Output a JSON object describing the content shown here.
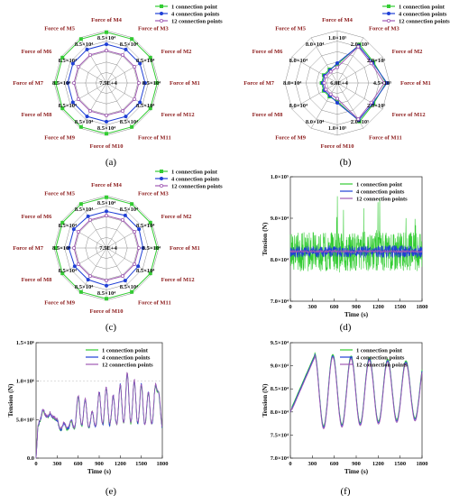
{
  "captions": [
    "(a)",
    "(b)",
    "(c)",
    "(d)",
    "(e)",
    "(f)"
  ],
  "colors": {
    "one_point": "#33cc33",
    "four_points": "#1f3fd6",
    "twelve_points": "#a05ab4",
    "force_label": "#8b1a1a",
    "grid": "#8a8a8a"
  },
  "chart_data": [
    {
      "panel": "(a)",
      "type": "radar",
      "legend": [
        "1 connection point",
        "4 connection points",
        "12 connection points"
      ],
      "categories": [
        "Force of M1",
        "Force of M2",
        "Force of M3",
        "Force of M4",
        "Force of M5",
        "Force of M6",
        "Force of M7",
        "Force of M8",
        "Force of M9",
        "Force of M10",
        "Force of M11",
        "Force of M12"
      ],
      "ring_labels": [
        "8.5×10⁴",
        "8.5×10⁴",
        "8.5×10⁴",
        "8.5×10⁴",
        "8.5×10⁴",
        "8.5×10⁴",
        "8.5×10⁴",
        "8.5×10⁴",
        "8.5×10⁴",
        "8.5×10⁴",
        "8.5×10⁴",
        "8.5×10⁴"
      ],
      "center_label": "7.5E+4",
      "series": [
        {
          "name": "1 connection point",
          "values": [
            0.97,
            0.97,
            0.97,
            0.97,
            0.97,
            0.97,
            0.97,
            0.97,
            0.97,
            0.97,
            0.97,
            0.97
          ]
        },
        {
          "name": "4 connection points",
          "values": [
            0.74,
            0.74,
            0.74,
            0.74,
            0.74,
            0.74,
            0.74,
            0.74,
            0.74,
            0.74,
            0.74,
            0.74
          ]
        },
        {
          "name": "12 connection points",
          "values": [
            0.62,
            0.62,
            0.62,
            0.62,
            0.62,
            0.62,
            0.62,
            0.62,
            0.62,
            0.62,
            0.62,
            0.62
          ]
        }
      ]
    },
    {
      "panel": "(b)",
      "type": "radar",
      "legend": [
        "1 connection point",
        "4 connection points",
        "12 connection points"
      ],
      "categories": [
        "Force of M1",
        "Force of M2",
        "Force of M3",
        "Force of M4",
        "Force of M5",
        "Force of M6",
        "Force of M7",
        "Force of M8",
        "Force of M9",
        "Force of M10",
        "Force of M11",
        "Force of M12"
      ],
      "ring_labels": [
        "4.5×10⁵",
        "2.0×10⁵",
        "2.0×10⁵",
        "1.0×10⁵",
        "8.0×10⁴",
        "8.0×10⁴",
        "8.0×10⁴",
        "8.0×10⁴",
        "8.0×10⁴",
        "1.0×10⁵",
        "2.0×10⁵",
        "2.0×10⁵"
      ],
      "center_label": "6.0E+4",
      "series": [
        {
          "name": "1 connection point",
          "values": [
            0.93,
            0.8,
            0.85,
            0.35,
            0.3,
            0.3,
            0.3,
            0.3,
            0.3,
            0.35,
            0.85,
            0.8
          ]
        },
        {
          "name": "4 connection points",
          "values": [
            0.95,
            0.78,
            0.82,
            0.38,
            0.28,
            0.28,
            0.28,
            0.28,
            0.28,
            0.38,
            0.82,
            0.78
          ]
        },
        {
          "name": "12 connection points",
          "values": [
            0.9,
            0.75,
            0.8,
            0.3,
            0.25,
            0.25,
            0.25,
            0.25,
            0.25,
            0.3,
            0.8,
            0.75
          ]
        }
      ]
    },
    {
      "panel": "(c)",
      "type": "radar",
      "legend": [
        "1 connection point",
        "4 connection points",
        "12 connection points"
      ],
      "categories": [
        "Force of M1",
        "Force of M2",
        "Force of M3",
        "Force of M4",
        "Force of M5",
        "Force of M6",
        "Force of M7",
        "Force of M8",
        "Force of M9",
        "Force of M10",
        "Force of M11",
        "Force of M12"
      ],
      "ring_labels": [
        "8.5×10⁴",
        "8.5×10⁴",
        "8.5×10⁴",
        "8.5×10⁴",
        "8.5×10⁴",
        "8.5×10⁴",
        "8.5×10⁴",
        "8.5×10⁴",
        "8.5×10⁴",
        "8.5×10⁴",
        "8.5×10⁴",
        "8.5×10⁴"
      ],
      "center_label": "7.5E+4",
      "series": [
        {
          "name": "1 connection point",
          "values": [
            0.97,
            0.97,
            0.97,
            0.97,
            0.97,
            0.97,
            0.97,
            0.97,
            0.97,
            0.97,
            0.97,
            0.97
          ]
        },
        {
          "name": "4 connection points",
          "values": [
            0.7,
            0.72,
            0.72,
            0.7,
            0.7,
            0.72,
            0.72,
            0.7,
            0.7,
            0.72,
            0.72,
            0.7
          ]
        },
        {
          "name": "12 connection points",
          "values": [
            0.62,
            0.62,
            0.62,
            0.62,
            0.62,
            0.62,
            0.62,
            0.62,
            0.62,
            0.62,
            0.62,
            0.62
          ]
        }
      ]
    },
    {
      "panel": "(d)",
      "type": "line",
      "xlabel": "Time (s)",
      "ylabel": "Tension (N)",
      "xlim": [
        0,
        1800
      ],
      "ylim": [
        70000,
        100000
      ],
      "xticks": [
        "0",
        "300",
        "600",
        "900",
        "1200",
        "1500",
        "1800"
      ],
      "yticks": [
        "7.0×10⁴",
        "8.0×10⁴",
        "9.0×10⁴",
        "1.0×10⁵"
      ],
      "legend": [
        "1 connection point",
        "4 connection points",
        "12 connection points"
      ],
      "series": [
        {
          "name": "1 connection point",
          "mean": 82000,
          "amplitude": 6000
        },
        {
          "name": "4 connection points",
          "mean": 82000,
          "amplitude": 1500
        },
        {
          "name": "12 connection points",
          "mean": 82000,
          "amplitude": 300
        }
      ]
    },
    {
      "panel": "(e)",
      "type": "line",
      "xlabel": "Time (s)",
      "ylabel": "Tension (N)",
      "xlim": [
        0,
        1800
      ],
      "ylim": [
        0,
        1500000
      ],
      "xticks": [
        "0",
        "300",
        "600",
        "900",
        "1200",
        "1500",
        "1800"
      ],
      "yticks": [
        "0.0",
        "5.0×10⁵",
        "1.0×10⁶",
        "1.5×10⁶"
      ],
      "legend": [
        "1 connection point",
        "4 connection points",
        "12 connection points"
      ],
      "series": [
        {
          "name": "1 connection point",
          "peaks": [
            [
              50,
              450000
            ],
            [
              100,
              600000
            ],
            [
              150,
              500000
            ],
            [
              200,
              550000
            ],
            [
              250,
              500000
            ],
            [
              300,
              480000
            ],
            [
              400,
              450000
            ],
            [
              500,
              480000
            ],
            [
              600,
              800000
            ],
            [
              700,
              750000
            ],
            [
              800,
              600000
            ],
            [
              900,
              850000
            ],
            [
              1000,
              900000
            ],
            [
              1100,
              800000
            ],
            [
              1200,
              950000
            ],
            [
              1300,
              1100000
            ],
            [
              1400,
              1000000
            ],
            [
              1500,
              950000
            ],
            [
              1600,
              850000
            ],
            [
              1700,
              900000
            ],
            [
              1750,
              800000
            ]
          ]
        },
        {
          "name": "4 connection points",
          "peaks": []
        },
        {
          "name": "12 connection points",
          "peaks": []
        }
      ]
    },
    {
      "panel": "(f)",
      "type": "line",
      "xlabel": "Time (s)",
      "ylabel": "Tension (N)",
      "xlim": [
        0,
        1800
      ],
      "ylim": [
        70000,
        95000
      ],
      "xticks": [
        "0",
        "300",
        "600",
        "900",
        "1200",
        "1500",
        "1800"
      ],
      "yticks": [
        "7.0×10⁴",
        "7.5×10⁴",
        "8.0×10⁴",
        "8.5×10⁴",
        "9.0×10⁴",
        "9.5×10⁴"
      ],
      "legend": [
        "1 connection point",
        "4 connection points",
        "12 connection points"
      ],
      "series": [
        {
          "name": "1 connection point",
          "offset": 300
        },
        {
          "name": "4 connection points",
          "offset": 0
        },
        {
          "name": "12 connection points",
          "offset": -300
        }
      ]
    }
  ]
}
